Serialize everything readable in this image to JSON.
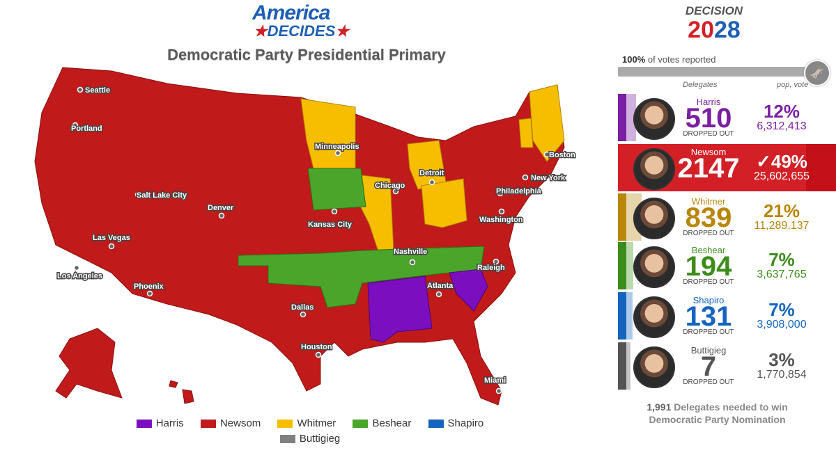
{
  "logo": {
    "line1": "America",
    "line2": "DECIDES"
  },
  "subtitle": "Democratic Party Presidential Primary",
  "decision": {
    "line1": "DECISION",
    "year_a": "20",
    "year_b": "28"
  },
  "reported": {
    "value": "100%",
    "text": "of votes reported",
    "fraction": 1.0
  },
  "headers": {
    "delegates": "Delegates",
    "popvote": "pop, vote"
  },
  "candidates": [
    {
      "name": "Harris",
      "delegates": "510",
      "status": "DROPPED OUT",
      "pct": "12%",
      "votes": "6,312,413",
      "color": "#7b1fa2",
      "fill": 0.2
    },
    {
      "name": "Newsom",
      "delegates": "2147",
      "status": "",
      "pct": "✓49%",
      "votes": "25,602,655",
      "color": "#d32027",
      "fill": 1.0,
      "winner": true
    },
    {
      "name": "Whitmer",
      "delegates": "839",
      "status": "DROPPED OUT",
      "pct": "21%",
      "votes": "11,289,137",
      "color": "#b8860b",
      "fill": 0.4
    },
    {
      "name": "Beshear",
      "delegates": "194",
      "status": "DROPPED OUT",
      "pct": "7%",
      "votes": "3,637,765",
      "color": "#3c8c1c",
      "fill": 0.1
    },
    {
      "name": "Shapiro",
      "delegates": "131",
      "status": "DROPPED OUT",
      "pct": "7%",
      "votes": "3,908,000",
      "color": "#1565c0",
      "fill": 0.07
    },
    {
      "name": "Buttigieg",
      "delegates": "7",
      "status": "DROPPED OUT",
      "pct": "3%",
      "votes": "1,770,854",
      "color": "#555555",
      "fill": 0.0
    }
  ],
  "needed": {
    "number": "1,991",
    "line1": "Delegates needed to win",
    "line2": "Democratic Party Nomination"
  },
  "legend": [
    {
      "label": "Harris",
      "color": "#7b0fbf"
    },
    {
      "label": "Newsom",
      "color": "#c01a1a"
    },
    {
      "label": "Whitmer",
      "color": "#f7be00"
    },
    {
      "label": "Beshear",
      "color": "#4aa52a"
    },
    {
      "label": "Shapiro",
      "color": "#1565c0"
    },
    {
      "label": "Buttigieg",
      "color": "#808080"
    }
  ],
  "map_colors": {
    "newsom": "#c01a1a",
    "whitmer": "#f7be00",
    "beshear": "#4aa52a",
    "harris": "#7b0fbf"
  },
  "cities": [
    "Seattle",
    "Portland",
    "Salt Lake City",
    "Denver",
    "Las Vegas",
    "Los Angeles",
    "Phoenix",
    "Minneapolis",
    "Kansas City",
    "Chicago",
    "Detroit",
    "Boston",
    "New York",
    "Philadelphia",
    "Washington",
    "Nashville",
    "Raleigh",
    "Atlanta",
    "Dallas",
    "Houston",
    "Miami"
  ]
}
